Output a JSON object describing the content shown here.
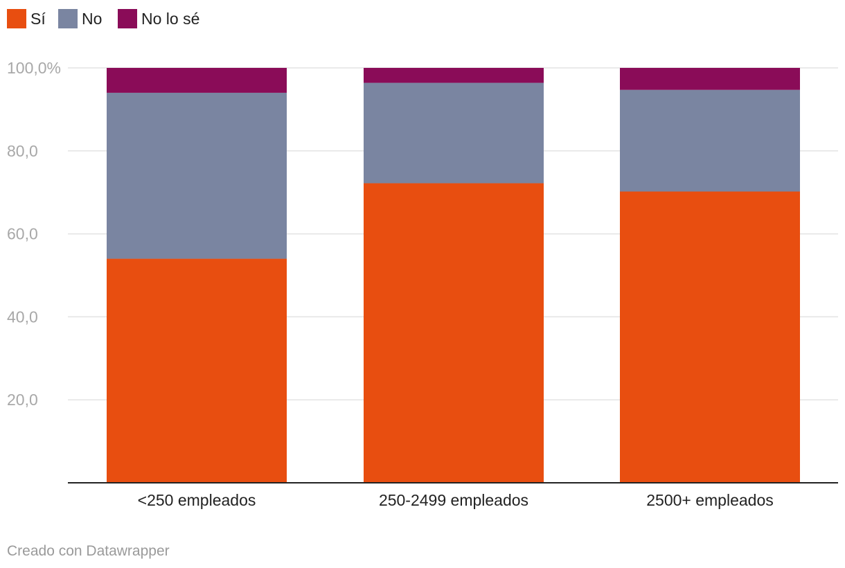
{
  "chart_data": {
    "type": "bar",
    "stacked": true,
    "categories": [
      "<250 empleados",
      "250-2499 empleados",
      "2500+ empleados"
    ],
    "series": [
      {
        "name": "Sí",
        "color": "#e84e10",
        "values": [
          54.0,
          72.2,
          70.2
        ]
      },
      {
        "name": "No",
        "color": "#7a85a1",
        "values": [
          40.0,
          24.2,
          24.5
        ]
      },
      {
        "name": "No lo sé",
        "color": "#8a0c58",
        "values": [
          6.0,
          3.6,
          5.3
        ]
      }
    ],
    "y_ticks": [
      {
        "value": 100,
        "label": "100,0%"
      },
      {
        "value": 80,
        "label": "80,0"
      },
      {
        "value": 60,
        "label": "60,0"
      },
      {
        "value": 40,
        "label": "40,0"
      },
      {
        "value": 20,
        "label": "20,0"
      }
    ],
    "ylim": [
      0,
      100
    ],
    "grid": true,
    "legend_position": "top-left",
    "title": "",
    "xlabel": "",
    "ylabel": ""
  },
  "footer": {
    "credit": "Creado con Datawrapper"
  }
}
